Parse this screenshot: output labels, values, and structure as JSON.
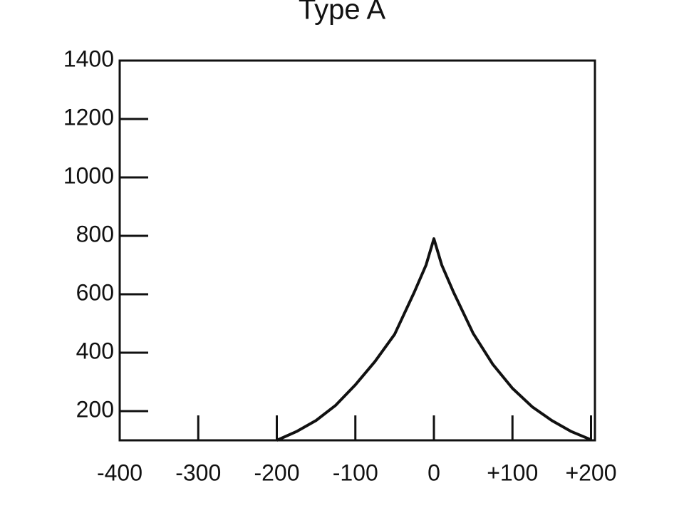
{
  "chart_data": {
    "type": "line",
    "title": "Type A",
    "x": [
      -200,
      -175,
      -150,
      -125,
      -100,
      -75,
      -50,
      -25,
      -10,
      0,
      10,
      25,
      50,
      75,
      100,
      125,
      150,
      175,
      200
    ],
    "values": [
      100,
      130,
      168,
      220,
      290,
      370,
      463,
      607,
      700,
      790,
      700,
      607,
      466,
      360,
      278,
      215,
      168,
      130,
      102
    ],
    "color": "#111111",
    "xlim": [
      -400,
      205
    ],
    "ylim": [
      100,
      1400
    ],
    "xticks": [
      -400,
      -300,
      -200,
      -100,
      0,
      {
        "value": 100,
        "label": "+100"
      },
      {
        "value": 200,
        "label": "+200"
      }
    ],
    "yticks": [
      200,
      400,
      600,
      800,
      1000,
      1200,
      1400
    ],
    "grid": false
  }
}
